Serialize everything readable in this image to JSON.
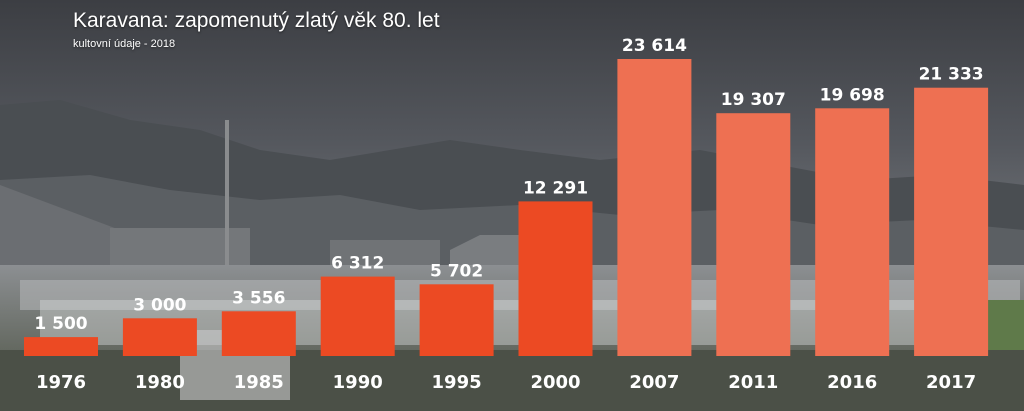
{
  "title": "Karavana: zapomenutý zlatý věk 80. let",
  "subtitle": "kultovní údaje - 2018",
  "colors": {
    "bar_primary": "#ec4a23",
    "bar_recent": "#ee7052",
    "label": "#ffffff"
  },
  "chart_data": {
    "type": "bar",
    "title": "Karavana: zapomenutý zlatý věk 80. let",
    "subtitle": "kultovní údaje - 2018",
    "xlabel": "",
    "ylabel": "",
    "categories": [
      "1976",
      "1980",
      "1985",
      "1990",
      "1995",
      "2000",
      "2007",
      "2011",
      "2016",
      "2017"
    ],
    "values": [
      1500,
      3000,
      3556,
      6312,
      5702,
      12291,
      23614,
      19307,
      19698,
      21333
    ],
    "value_labels": [
      "1 500",
      "3 000",
      "3 556",
      "6 312",
      "5 702",
      "12 291",
      "23 614",
      "19 307",
      "19 698",
      "21 333"
    ],
    "ylim": [
      0,
      23614
    ],
    "grid": false,
    "legend": "none"
  }
}
